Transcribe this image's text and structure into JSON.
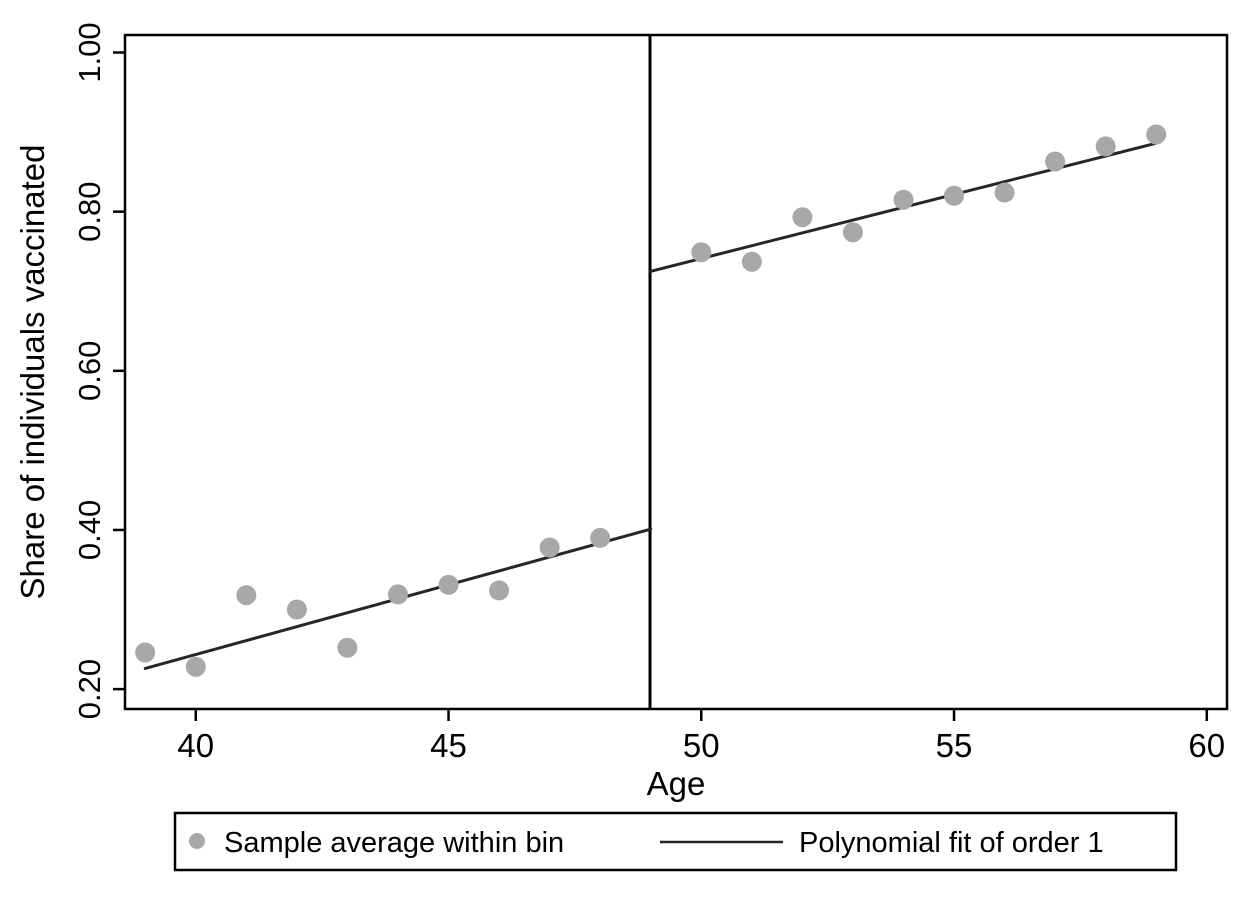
{
  "figure": {
    "kind": "regression discontinuity plot",
    "background": "#ffffff"
  },
  "colors": {
    "marker": "#a8a8a8",
    "fit_line": "#262626",
    "cutoff_line": "#000000",
    "axis": "#000000",
    "text": "#000000",
    "background": "#ffffff"
  },
  "legend": {
    "marker_label": "Sample average within bin",
    "line_label": "Polynomial fit of order 1",
    "marker_icon": "gray-dot-icon",
    "line_icon": "line-segment-icon",
    "position": "bottom"
  },
  "chart_data": {
    "type": "scatter",
    "title": "",
    "xlabel": "Age",
    "ylabel": "Share of individuals vaccinated",
    "xlim": [
      38.6,
      60.4
    ],
    "ylim": [
      0.175,
      1.022
    ],
    "x_ticks": [
      40,
      45,
      50,
      55,
      60
    ],
    "x_tick_labels": [
      "40",
      "45",
      "50",
      "55",
      "60"
    ],
    "y_ticks": [
      0.2,
      0.4,
      0.6,
      0.8,
      1.0
    ],
    "y_tick_labels": [
      "0.20",
      "0.40",
      "0.60",
      "0.80",
      "1.00"
    ],
    "grid": false,
    "cutoff_x": 49,
    "legend_position": "bottom",
    "series": [
      {
        "name": "Sample average within bin",
        "type": "scatter",
        "marker_radius": 10,
        "points": [
          [
            39,
            0.246
          ],
          [
            40,
            0.228
          ],
          [
            41,
            0.318
          ],
          [
            42,
            0.3
          ],
          [
            43,
            0.252
          ],
          [
            44,
            0.319
          ],
          [
            45,
            0.331
          ],
          [
            46,
            0.324
          ],
          [
            47,
            0.378
          ],
          [
            48,
            0.39
          ],
          [
            50,
            0.749
          ],
          [
            51,
            0.737
          ],
          [
            52,
            0.793
          ],
          [
            53,
            0.774
          ],
          [
            54,
            0.815
          ],
          [
            55,
            0.82
          ],
          [
            56,
            0.824
          ],
          [
            57,
            0.863
          ],
          [
            58,
            0.882
          ],
          [
            59,
            0.897
          ]
        ]
      },
      {
        "name": "Polynomial fit of order 1 (left of cutoff)",
        "type": "line",
        "points": [
          [
            39,
            0.226
          ],
          [
            49,
            0.401
          ]
        ]
      },
      {
        "name": "Polynomial fit of order 1 (right of cutoff)",
        "type": "line",
        "points": [
          [
            49,
            0.725
          ],
          [
            59,
            0.886
          ]
        ]
      }
    ]
  }
}
